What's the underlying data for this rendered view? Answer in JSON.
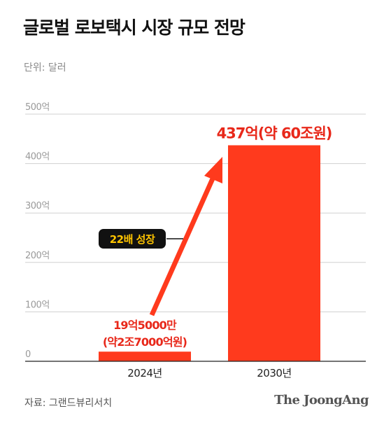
{
  "header": {
    "title": "글로벌 로보택시 시장 규모 전망",
    "unit": "단위: 달러"
  },
  "footer": {
    "source": "자료: 그랜드뷰리서치",
    "publisher": "The JoongAng"
  },
  "colors": {
    "bar": "#ff3a1d",
    "label": "#e8281a",
    "arrow": "#ff3a1d",
    "callout_bg": "#111111",
    "callout_text": "#ffc400",
    "grid": "#d0d0d0",
    "axis": "#222222",
    "tick_text": "#9a9a9a"
  },
  "chart_data": {
    "type": "bar",
    "categories": [
      "2024년",
      "2030년"
    ],
    "values": [
      19.5,
      437
    ],
    "value_labels": [
      [
        "19억5000만",
        "(약2조7000억원)"
      ],
      [
        "437억(약 60조원)"
      ]
    ],
    "yticks": [
      {
        "value": 0,
        "label": "0"
      },
      {
        "value": 100,
        "label": "100억"
      },
      {
        "value": 200,
        "label": "200억"
      },
      {
        "value": 300,
        "label": "300억"
      },
      {
        "value": 400,
        "label": "400억"
      },
      {
        "value": 500,
        "label": "500억"
      }
    ],
    "ylim": [
      0,
      500
    ],
    "grid": true,
    "annotation": {
      "type": "growth-arrow",
      "from_category": "2024년",
      "to_category": "2030년",
      "label": "22배 성장"
    }
  }
}
